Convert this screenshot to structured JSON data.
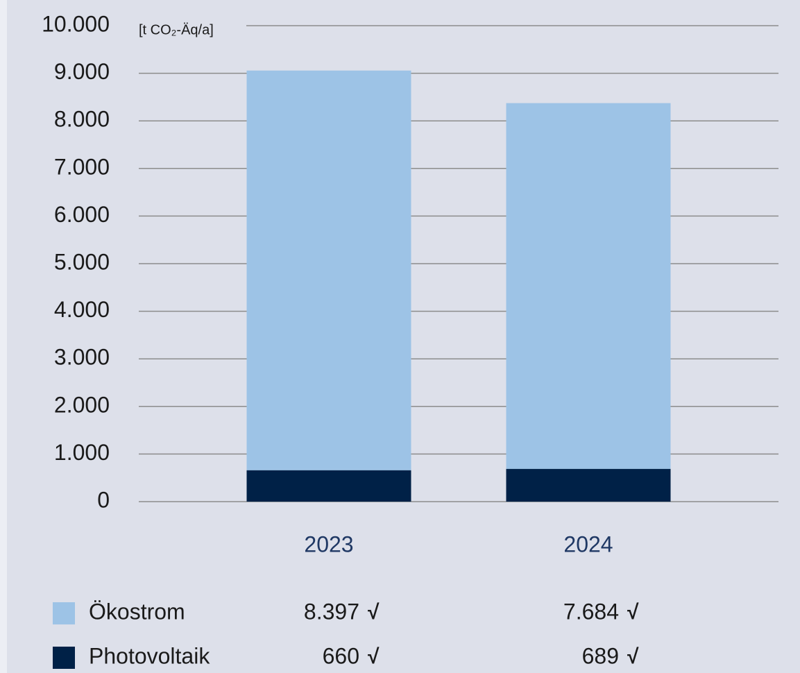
{
  "chart_data": {
    "type": "stacked_bar",
    "y_axis_label": "[t CO₂-Äq/a]",
    "categories": [
      "2023",
      "2024"
    ],
    "series": [
      {
        "name": "Photovoltaik",
        "color": "#002147",
        "values": [
          660,
          689
        ],
        "value_labels": [
          "660",
          "689"
        ]
      },
      {
        "name": "Ökostrom",
        "color": "#9dc3e6",
        "values": [
          8397,
          7684
        ],
        "value_labels": [
          "8.397",
          "7.684"
        ]
      }
    ],
    "value_mark": "√",
    "ylim": [
      0,
      10000
    ],
    "yticks": [
      0,
      {
        "value": 1000,
        "label": "1.000"
      },
      {
        "value": 2000,
        "label": "2.000"
      },
      {
        "value": 3000,
        "label": "3.000"
      },
      {
        "value": 4000,
        "label": "4.000"
      },
      {
        "value": 5000,
        "label": "5.000"
      },
      {
        "value": 6000,
        "label": "6.000"
      },
      {
        "value": 7000,
        "label": "7.000"
      },
      {
        "value": 8000,
        "label": "8.000"
      },
      {
        "value": 9000,
        "label": "9.000"
      },
      {
        "value": 10000,
        "label": "10.000"
      }
    ],
    "grid": true
  }
}
